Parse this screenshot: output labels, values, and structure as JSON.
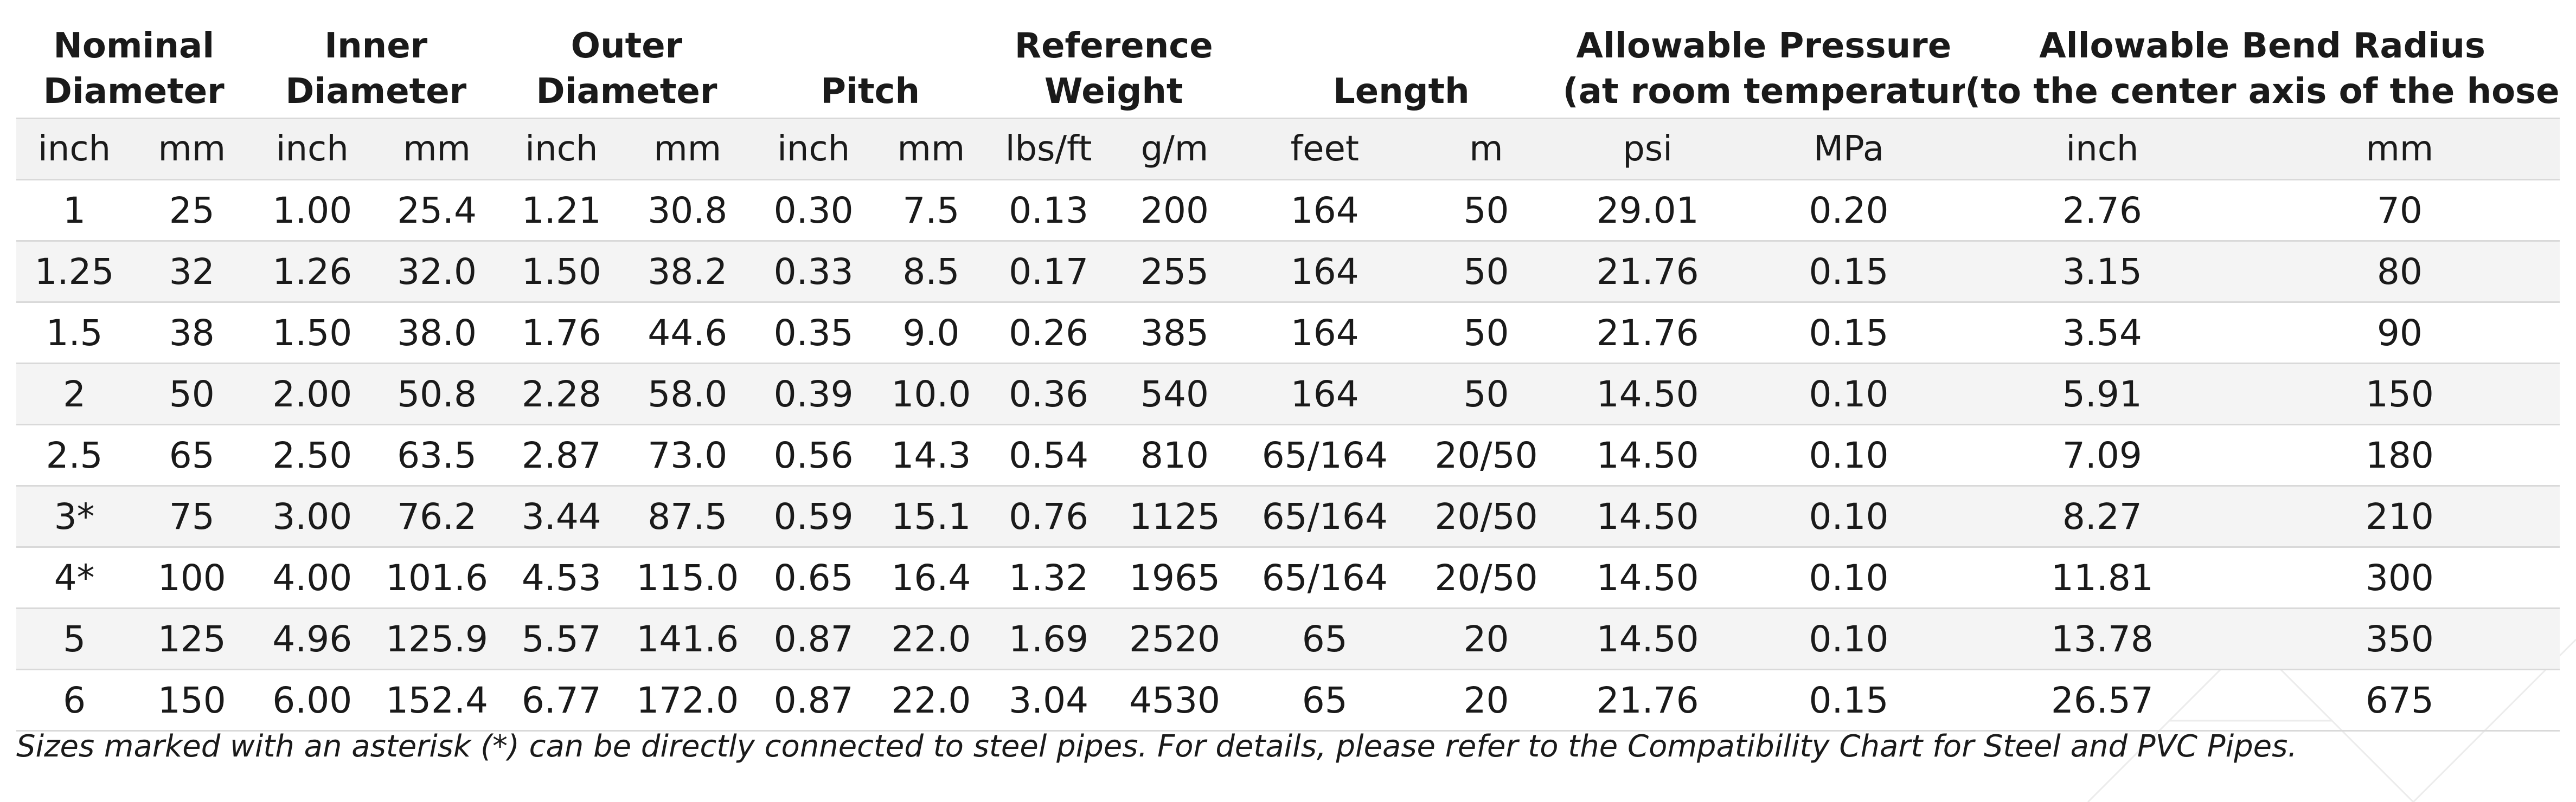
{
  "groups": [
    {
      "line1": "Nominal",
      "line2": "Diameter",
      "span": 2
    },
    {
      "line1": "Inner",
      "line2": "Diameter",
      "span": 2
    },
    {
      "line1": "Outer",
      "line2": "Diameter",
      "span": 2
    },
    {
      "line1": "",
      "line2": "Pitch",
      "span": 2
    },
    {
      "line1": "Reference",
      "line2": "Weight",
      "span": 2
    },
    {
      "line1": "",
      "line2": "Length",
      "span": 2
    },
    {
      "line1": "Allowable Pressure",
      "line2": "(at room temperature)",
      "span": 2
    },
    {
      "line1": "Allowable Bend Radius",
      "line2": "(to the center axis of the hose)",
      "span": 2
    }
  ],
  "units": [
    "inch",
    "mm",
    "inch",
    "mm",
    "inch",
    "mm",
    "inch",
    "mm",
    "lbs/ft",
    "g/m",
    "feet",
    "m",
    "psi",
    "MPa",
    "inch",
    "mm"
  ],
  "rows": [
    [
      "1",
      "25",
      "1.00",
      "25.4",
      "1.21",
      "30.8",
      "0.30",
      "7.5",
      "0.13",
      "200",
      "164",
      "50",
      "29.01",
      "0.20",
      "2.76",
      "70"
    ],
    [
      "1.25",
      "32",
      "1.26",
      "32.0",
      "1.50",
      "38.2",
      "0.33",
      "8.5",
      "0.17",
      "255",
      "164",
      "50",
      "21.76",
      "0.15",
      "3.15",
      "80"
    ],
    [
      "1.5",
      "38",
      "1.50",
      "38.0",
      "1.76",
      "44.6",
      "0.35",
      "9.0",
      "0.26",
      "385",
      "164",
      "50",
      "21.76",
      "0.15",
      "3.54",
      "90"
    ],
    [
      "2",
      "50",
      "2.00",
      "50.8",
      "2.28",
      "58.0",
      "0.39",
      "10.0",
      "0.36",
      "540",
      "164",
      "50",
      "14.50",
      "0.10",
      "5.91",
      "150"
    ],
    [
      "2.5",
      "65",
      "2.50",
      "63.5",
      "2.87",
      "73.0",
      "0.56",
      "14.3",
      "0.54",
      "810",
      "65/164",
      "20/50",
      "14.50",
      "0.10",
      "7.09",
      "180"
    ],
    [
      "3*",
      "75",
      "3.00",
      "76.2",
      "3.44",
      "87.5",
      "0.59",
      "15.1",
      "0.76",
      "1125",
      "65/164",
      "20/50",
      "14.50",
      "0.10",
      "8.27",
      "210"
    ],
    [
      "4*",
      "100",
      "4.00",
      "101.6",
      "4.53",
      "115.0",
      "0.65",
      "16.4",
      "1.32",
      "1965",
      "65/164",
      "20/50",
      "14.50",
      "0.10",
      "11.81",
      "300"
    ],
    [
      "5",
      "125",
      "4.96",
      "125.9",
      "5.57",
      "141.6",
      "0.87",
      "22.0",
      "1.69",
      "2520",
      "65",
      "20",
      "14.50",
      "0.10",
      "13.78",
      "350"
    ],
    [
      "6",
      "150",
      "6.00",
      "152.4",
      "6.77",
      "172.0",
      "0.87",
      "22.0",
      "3.04",
      "4530",
      "65",
      "20",
      "21.76",
      "0.15",
      "26.57",
      "675"
    ]
  ],
  "footnote": "Sizes marked with an asterisk (*) can be directly connected to steel pipes. For details, please refer to the Compatibility Chart for Steel and PVC Pipes."
}
